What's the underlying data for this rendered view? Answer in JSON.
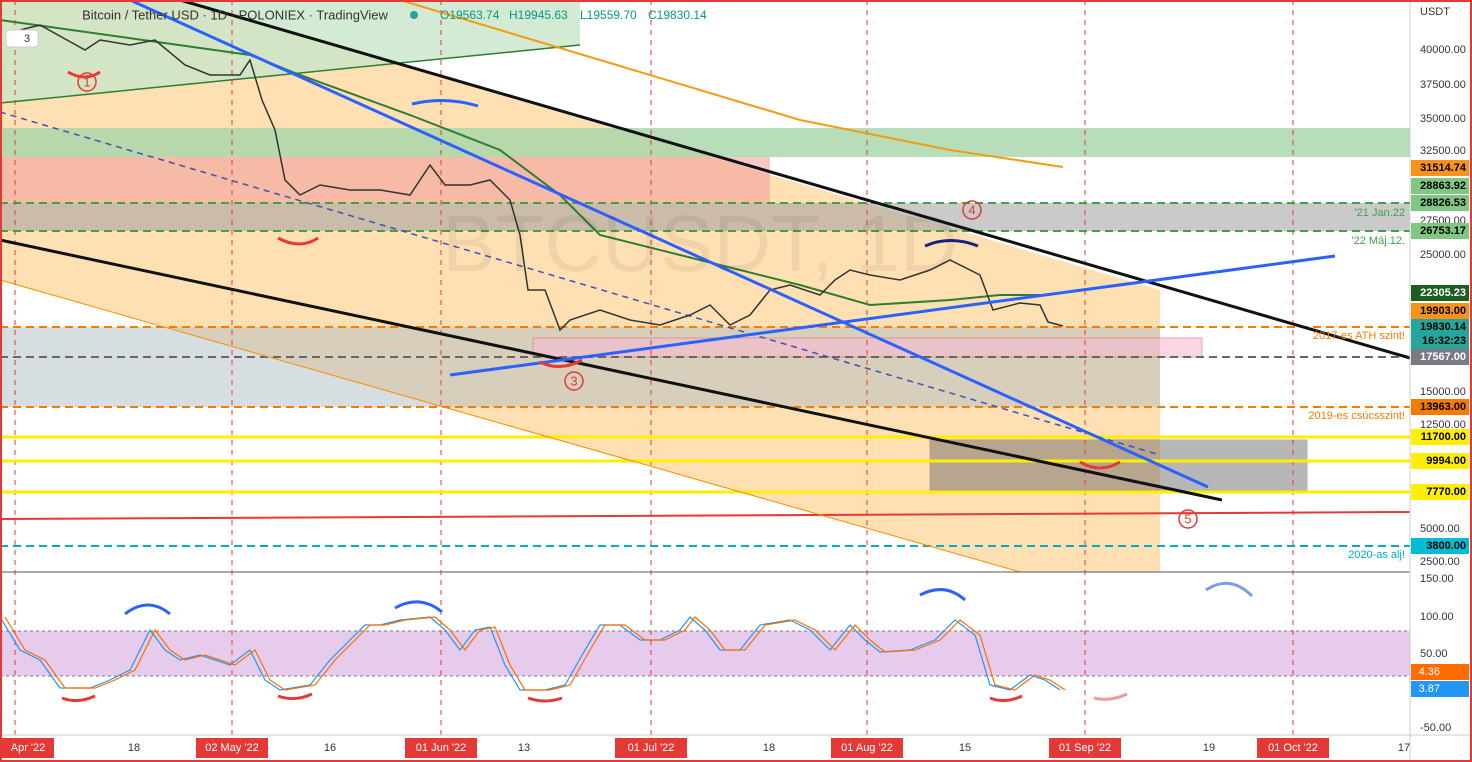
{
  "header": {
    "symbol": "Bitcoin / Tether USD · 1D · POLONIEX · TradingView",
    "open": "O19563.74",
    "high": "H19945.63",
    "low": "L19559.70",
    "close": "C19830.14",
    "indicator_count": "3"
  },
  "watermark": "BTCUSDT, 1D",
  "price_axis": {
    "currency": "USDT",
    "ticks": [
      "40000.00",
      "37500.00",
      "35000.00",
      "32500.00",
      "27500.00",
      "25000.00",
      "15000.00",
      "12500.00",
      "5000.00",
      "2500.00"
    ]
  },
  "price_tags": [
    "31514.74",
    "28863.92",
    "28826.53",
    "26753.17",
    "22305.23",
    "19903.00",
    "19830.14",
    "16:32:23",
    "17567.00",
    "13963.00",
    "11700.00",
    "9994.00",
    "7770.00",
    "3800.00"
  ],
  "level_notes": [
    "'21 Jan.22",
    "'22 Máj.12.",
    "2017-es ATH szint!",
    "2019-es csúcsszint!",
    "2020-as alj!"
  ],
  "markers": [
    "1",
    "3",
    "4",
    "5"
  ],
  "oscillator_axis": {
    "ticks": [
      "150.00",
      "100.00",
      "50.00",
      "-50.00"
    ],
    "k": "4.36",
    "d": "3.87"
  },
  "time_axis": [
    "Apr '22",
    "18",
    "02 May '22",
    "16",
    "01 Jun '22",
    "13",
    "01 Jul '22",
    "18",
    "01 Aug '22",
    "15",
    "01 Sep '22",
    "19",
    "01 Oct '22",
    "17"
  ]
}
